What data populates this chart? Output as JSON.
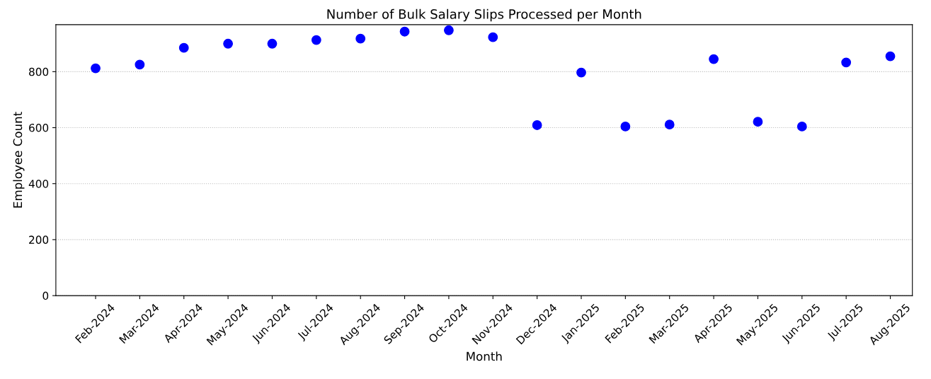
{
  "chart_data": {
    "type": "scatter",
    "title": "Number of Bulk Salary Slips Processed per Month",
    "xlabel": "Month",
    "ylabel": "Employee Count",
    "categories": [
      "Feb-2024",
      "Mar-2024",
      "Apr-2024",
      "May-2024",
      "Jun-2024",
      "Jul-2024",
      "Aug-2024",
      "Sep-2024",
      "Oct-2024",
      "Nov-2024",
      "Dec-2024",
      "Jan-2025",
      "Feb-2025",
      "Mar-2025",
      "Apr-2025",
      "May-2025",
      "Jun-2025",
      "Jul-2025",
      "Aug-2025"
    ],
    "series": [
      {
        "color": "#0000ff",
        "values": [
          812,
          825,
          885,
          900,
          900,
          913,
          918,
          943,
          948,
          923,
          609,
          797,
          604,
          611,
          845,
          621,
          604,
          833,
          855
        ]
      }
    ],
    "ylim": [
      0,
      968
    ],
    "yticks": [
      0,
      200,
      400,
      600,
      800
    ],
    "grid": "y",
    "marker": "circle"
  }
}
